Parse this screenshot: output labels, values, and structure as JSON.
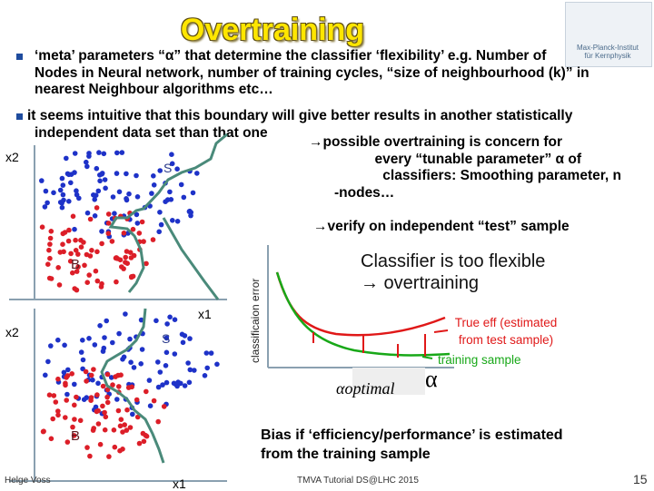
{
  "slide": {
    "title": "Overtraining",
    "logo_text_1": "Max-Planck-Institut",
    "logo_text_2": "für Kernphysik",
    "bullet1_line1": "‘meta’ parameters “α” that determine the classifier ‘flexibility’   e.g. Number of",
    "bullet1_line2": "Nodes in Neural network,  number of training cycles,  “size of neighbourhood (k)” in",
    "bullet1_line3": "nearest Neighbour algorithms etc…",
    "bullet2_line1": "it seems intuitive that this boundary will give better results in another statistically",
    "bullet2_line2": "independent data set than that one",
    "concern_line1": "→possible overtraining is concern for",
    "concern_line2": "every “tunable parameter” α of",
    "concern_line3": "classifiers: Smoothing parameter,   n",
    "concern_line4": "-nodes…",
    "verify": "→verify on independent “test” sample",
    "flex_line1": "Classifier is too flexible",
    "flex_line2": "→ overtraining",
    "true_eff_line1": "True eff (estimated",
    "true_eff_line2": "from test sample)",
    "training_sample": "training sample",
    "ylabel": "classificaion error",
    "alpha_axis": "α",
    "alpha_optimal": "αoptimal",
    "bias_line1": "Bias if ‘efficiency/performance’ is estimated",
    "bias_line2": "from the training sample",
    "footer_left": "Helge Voss",
    "footer_center": "TMVA Tutorial   DS@LHC 2015",
    "page_number": "15"
  },
  "plot_top": {
    "y_label": "x2",
    "x_label": "x1",
    "signal_label": "S",
    "background_label": "B"
  },
  "plot_bottom": {
    "y_label": "x2",
    "x_label": "x1",
    "signal_label": "S",
    "background_label": "B"
  },
  "colors": {
    "signal": "#1e32c8",
    "background": "#dc1e28",
    "boundary": "#4a8a7a",
    "true_eff": "#e01818",
    "training": "#18a818",
    "title": "#ffe600",
    "arrow": "#c81414"
  }
}
